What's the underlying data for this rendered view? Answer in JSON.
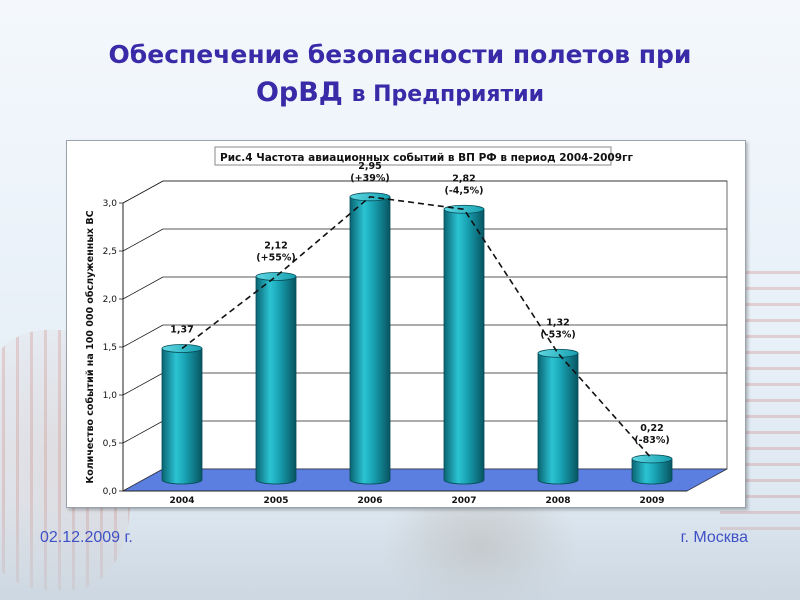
{
  "slide": {
    "title_line1": "Обеспечение безопасности полетов при",
    "title_line2_bold": "ОрВД",
    "title_line2_rest": "в Предприятии",
    "footer_date": "02.12.2009 г.",
    "footer_city": "г. Москва"
  },
  "chart_data": {
    "type": "bar",
    "title": "Рис.4  Частота авиационных событий в ВП РФ в период 2004-2009гг",
    "ylabel": "Количество событий на 100 000 обслуженных ВС",
    "xlabel": "",
    "categories": [
      "2004",
      "2005",
      "2006",
      "2007",
      "2008",
      "2009"
    ],
    "values": [
      1.37,
      2.12,
      2.95,
      2.82,
      1.32,
      0.22
    ],
    "value_labels": [
      "1,37",
      "2,12",
      "2,95",
      "2,82",
      "1,32",
      "0,22"
    ],
    "change_labels": [
      "",
      "(+55%)",
      "(+39%)",
      "(-4,5%)",
      "(-53%)",
      "(-83%)"
    ],
    "ylim": [
      0,
      3.0
    ],
    "yticks": [
      "0,0",
      "0,5",
      "1,0",
      "1,5",
      "2,0",
      "2,5",
      "3,0"
    ],
    "grid": true,
    "bar_style": "3d cylinder",
    "trend_line": "dashed",
    "colors": {
      "bar": "#1aa7b8",
      "bar_dark": "#0b6f7e",
      "floor": "#5b7fe0",
      "grid": "#000000"
    }
  }
}
